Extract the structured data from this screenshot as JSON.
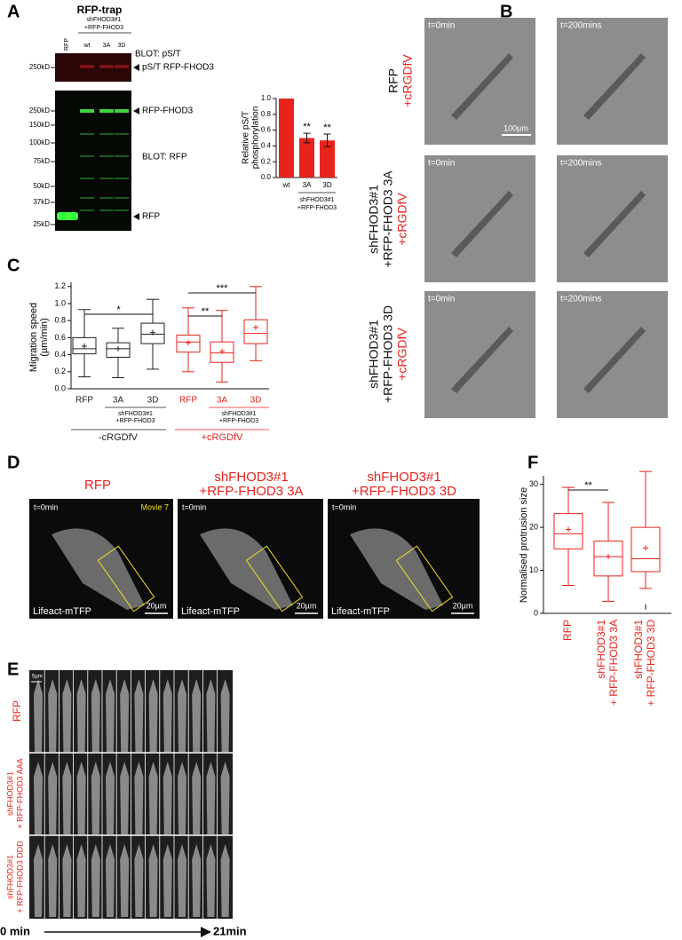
{
  "figure": {
    "panel_labels": [
      "A",
      "B",
      "C",
      "D",
      "E",
      "F"
    ],
    "blot": {
      "title": "RFP-trap",
      "group_label": [
        "shFHOD3#1",
        "+RFP-FHOD3"
      ],
      "lanes": [
        "RFP",
        "wt",
        "3A",
        "3D"
      ],
      "top_blot": "BLOT: pS/T",
      "top_marker": "250kD",
      "top_band": "pS/T RFP-FHOD3",
      "bottom_blot": "BLOT: RFP",
      "bands": [
        "RFP-FHOD3",
        "RFP"
      ],
      "markers": [
        "250kD",
        "150kD",
        "100kD",
        "75kD",
        "50kD",
        "37kD",
        "25kD"
      ]
    },
    "timelapse": {
      "times": [
        "t=0min",
        "t=200mins"
      ],
      "scale_bar": "100µm",
      "rows": [
        [
          "RFP",
          "+cRGDfV"
        ],
        [
          "shFHOD3#1",
          "+RFP-FHOD3 3A",
          "+cRGDfV"
        ],
        [
          "shFHOD3#1",
          "+RFP-FHOD3 3D",
          "+cRGDfV"
        ]
      ]
    },
    "movies": {
      "titles": [
        [
          "RFP"
        ],
        [
          "shFHOD3#1",
          "+RFP-FHOD3 3A"
        ],
        [
          "shFHOD3#1",
          "+RFP-FHOD3 3D"
        ]
      ],
      "time": "t=0min",
      "movie": "Movie 7",
      "probe": "Lifeact-mTFP",
      "scale_bar": "20µm"
    },
    "kymograph": {
      "scale_bar": "5µm",
      "rows": [
        [
          "RFP"
        ],
        [
          "shFHOD3#1",
          "+ RFP-FHOD3 AAA"
        ],
        [
          "shFHOD3#1",
          "+ RFP-FHOD3 DDD"
        ]
      ],
      "start": "0 min",
      "end": "21min"
    }
  },
  "chart_data": [
    {
      "type": "bar",
      "ylabel": [
        "Relative pS/T",
        "phosphorylation"
      ],
      "categories": [
        "wt",
        "3A",
        "3D"
      ],
      "values": [
        1.0,
        0.5,
        0.47
      ],
      "errors": [
        null,
        0.06,
        0.08
      ],
      "significance": [
        null,
        "**",
        "**"
      ],
      "group_label": [
        "shFHOD3#1",
        "+RFP-FHOD3"
      ],
      "color": "#e8231c",
      "ylim": [
        0,
        1.0
      ],
      "yticks": [
        {
          "value": 0,
          "label": "0.0"
        },
        0.2,
        0.4,
        0.6,
        0.8,
        {
          "value": 1.0,
          "label": "1.0"
        }
      ]
    },
    {
      "type": "box",
      "ylabel": [
        "Migration speed",
        "(µm/min)"
      ],
      "ylim": [
        0,
        1.25
      ],
      "yticks": [
        {
          "value": 0,
          "label": "0.0"
        },
        0.2,
        0.4,
        0.6,
        0.8,
        {
          "value": 1.0,
          "label": "1.0"
        },
        1.2
      ],
      "groups": [
        {
          "label": "-cRGDfV",
          "sublabel": [
            "shFHOD3#1",
            "+RFP-FHOD3"
          ],
          "color": "#231f20",
          "categories": [
            "RFP",
            "3A",
            "3D"
          ],
          "boxes": [
            {
              "min": 0.14,
              "q1": 0.41,
              "median": 0.47,
              "q3": 0.6,
              "max": 0.93,
              "mean": 0.5
            },
            {
              "min": 0.13,
              "q1": 0.37,
              "median": 0.47,
              "q3": 0.54,
              "max": 0.71,
              "mean": 0.47
            },
            {
              "min": 0.23,
              "q1": 0.53,
              "median": 0.64,
              "q3": 0.77,
              "max": 1.05,
              "mean": 0.66
            }
          ]
        },
        {
          "label": "+cRGDfV",
          "sublabel": [
            "shFHOD3#1",
            "+RFP-FHOD3"
          ],
          "color": "#e8231c",
          "categories": [
            "RFP",
            "3A",
            "3D"
          ],
          "boxes": [
            {
              "min": 0.2,
              "q1": 0.43,
              "median": 0.55,
              "q3": 0.63,
              "max": 0.95,
              "mean": 0.54
            },
            {
              "min": 0.08,
              "q1": 0.31,
              "median": 0.42,
              "q3": 0.55,
              "max": 0.92,
              "mean": 0.44
            },
            {
              "min": 0.33,
              "q1": 0.53,
              "median": 0.65,
              "q3": 0.81,
              "max": 1.2,
              "mean": 0.72
            }
          ]
        }
      ],
      "significance": [
        {
          "label": "*",
          "between": [
            0,
            2
          ]
        },
        {
          "label": "**",
          "between": [
            3,
            4
          ]
        },
        {
          "label": "***",
          "between": [
            3,
            5
          ]
        }
      ]
    },
    {
      "type": "box",
      "ylabel": [
        "Normalised protrusion size"
      ],
      "ylim": [
        0,
        32
      ],
      "yticks": [
        0,
        10,
        20,
        30
      ],
      "groups": [
        {
          "color": "#e8231c",
          "categories": [
            [
              "RFP"
            ],
            [
              "shFHOD3#1",
              "+ RFP-FHOD3 3A"
            ],
            [
              "shFHOD3#1",
              "+ RFP-FHOD3 3D"
            ]
          ],
          "boxes": [
            {
              "min": 6.5,
              "q1": 15,
              "median": 18.5,
              "q3": 23.2,
              "max": 29.3,
              "mean": 19.5
            },
            {
              "min": 2.8,
              "q1": 8.7,
              "median": 13.2,
              "q3": 16.8,
              "max": 25.8,
              "mean": 13.2
            },
            {
              "min": 5.8,
              "q1": 9.7,
              "median": 12.7,
              "q3": 20,
              "max": 33,
              "mean": 15.2,
              "outliers": [
                1.5
              ]
            }
          ]
        }
      ],
      "significance": [
        {
          "label": "**",
          "between": [
            0,
            1
          ]
        }
      ]
    }
  ]
}
